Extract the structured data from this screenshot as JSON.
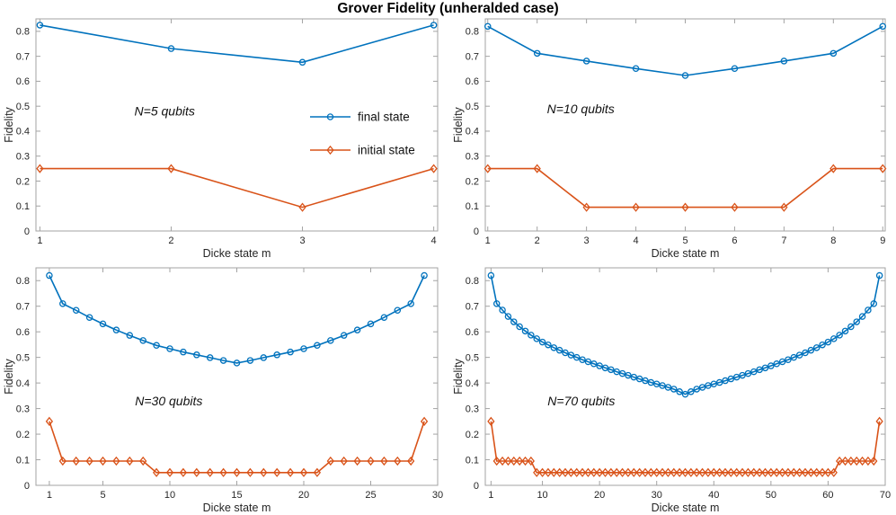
{
  "page_title": "Grover Fidelity (unheralded case)",
  "colors": {
    "final_state": "#0072BD",
    "initial_state": "#D95319",
    "spine": "#a3a3a3",
    "tick_text": "#262626",
    "background": "#ffffff"
  },
  "legend": {
    "subplot": "top-left",
    "position": "inside-middle-right",
    "items": [
      {
        "label": "final state",
        "marker": "circle",
        "color": "#0072BD"
      },
      {
        "label": "initial state",
        "marker": "diamond",
        "color": "#D95319"
      }
    ]
  },
  "chart_data": [
    {
      "type": "line",
      "subplot": "top-left",
      "annotation": {
        "text": "N=5 qubits",
        "x": 1.72,
        "y": 0.48
      },
      "xlabel": "Dicke state m",
      "ylabel": "Fidelity",
      "xlim": [
        0.97,
        4.03
      ],
      "ylim": [
        0,
        0.85
      ],
      "xticks": [
        1,
        2,
        3,
        4
      ],
      "yticks": [
        0,
        0.1,
        0.2,
        0.3,
        0.4,
        0.5,
        0.6,
        0.7,
        0.8
      ],
      "grid": false,
      "x": [
        1,
        2,
        3,
        4
      ],
      "series": [
        {
          "name": "final state",
          "color": "#0072BD",
          "marker": "circle",
          "values": [
            0.825,
            0.731,
            0.676,
            0.825
          ]
        },
        {
          "name": "initial state",
          "color": "#D95319",
          "marker": "diamond",
          "values": [
            0.25,
            0.25,
            0.095,
            0.25
          ]
        }
      ]
    },
    {
      "type": "line",
      "subplot": "top-right",
      "annotation": {
        "text": "N=10 qubits",
        "x": 2.2,
        "y": 0.49
      },
      "xlabel": "Dicke state m",
      "ylabel": "Fidelity",
      "xlim": [
        0.95,
        9.05
      ],
      "ylim": [
        0,
        0.85
      ],
      "xticks": [
        1,
        2,
        3,
        4,
        5,
        6,
        7,
        8,
        9
      ],
      "yticks": [
        0,
        0.1,
        0.2,
        0.3,
        0.4,
        0.5,
        0.6,
        0.7,
        0.8
      ],
      "grid": false,
      "x": [
        1,
        2,
        3,
        4,
        5,
        6,
        7,
        8,
        9
      ],
      "series": [
        {
          "name": "final state",
          "color": "#0072BD",
          "marker": "circle",
          "values": [
            0.82,
            0.712,
            0.681,
            0.651,
            0.623,
            0.651,
            0.681,
            0.712,
            0.82
          ]
        },
        {
          "name": "initial state",
          "color": "#D95319",
          "marker": "diamond",
          "values": [
            0.25,
            0.25,
            0.095,
            0.095,
            0.095,
            0.095,
            0.095,
            0.25,
            0.25
          ]
        }
      ]
    },
    {
      "type": "line",
      "subplot": "bottom-left",
      "annotation": {
        "text": "N=30 qubits",
        "x": 7.4,
        "y": 0.33
      },
      "xlabel": "Dicke state m",
      "ylabel": "Fidelity",
      "xlim": [
        0,
        30
      ],
      "ylim": [
        0,
        0.85
      ],
      "xticks": [
        1,
        5,
        10,
        15,
        20,
        25,
        30
      ],
      "yticks": [
        0,
        0.1,
        0.2,
        0.3,
        0.4,
        0.5,
        0.6,
        0.7,
        0.8
      ],
      "grid": false,
      "x": [
        1,
        2,
        3,
        4,
        5,
        6,
        7,
        8,
        9,
        10,
        11,
        12,
        13,
        14,
        15,
        16,
        17,
        18,
        19,
        20,
        21,
        22,
        23,
        24,
        25,
        26,
        27,
        28,
        29
      ],
      "series": [
        {
          "name": "final state",
          "color": "#0072BD",
          "marker": "circle",
          "values": [
            0.82,
            0.71,
            0.684,
            0.656,
            0.631,
            0.607,
            0.586,
            0.566,
            0.547,
            0.534,
            0.521,
            0.51,
            0.499,
            0.488,
            0.478,
            0.488,
            0.499,
            0.51,
            0.521,
            0.534,
            0.547,
            0.566,
            0.586,
            0.607,
            0.631,
            0.656,
            0.684,
            0.71,
            0.82
          ]
        },
        {
          "name": "initial state",
          "color": "#D95319",
          "marker": "diamond",
          "values": [
            0.25,
            0.095,
            0.095,
            0.095,
            0.095,
            0.095,
            0.095,
            0.095,
            0.05,
            0.05,
            0.05,
            0.05,
            0.05,
            0.05,
            0.05,
            0.05,
            0.05,
            0.05,
            0.05,
            0.05,
            0.05,
            0.095,
            0.095,
            0.095,
            0.095,
            0.095,
            0.095,
            0.095,
            0.25
          ]
        }
      ]
    },
    {
      "type": "line",
      "subplot": "bottom-right",
      "annotation": {
        "text": "N=70 qubits",
        "x": 10.9,
        "y": 0.33
      },
      "xlabel": "Dicke state m",
      "ylabel": "Fidelity",
      "xlim": [
        0,
        70
      ],
      "ylim": [
        0,
        0.85
      ],
      "xticks": [
        1,
        10,
        20,
        30,
        40,
        50,
        60,
        70
      ],
      "yticks": [
        0,
        0.1,
        0.2,
        0.3,
        0.4,
        0.5,
        0.6,
        0.7,
        0.8
      ],
      "grid": false,
      "x": [
        1,
        2,
        3,
        4,
        5,
        6,
        7,
        8,
        9,
        10,
        11,
        12,
        13,
        14,
        15,
        16,
        17,
        18,
        19,
        20,
        21,
        22,
        23,
        24,
        25,
        26,
        27,
        28,
        29,
        30,
        31,
        32,
        33,
        34,
        35,
        36,
        37,
        38,
        39,
        40,
        41,
        42,
        43,
        44,
        45,
        46,
        47,
        48,
        49,
        50,
        51,
        52,
        53,
        54,
        55,
        56,
        57,
        58,
        59,
        60,
        61,
        62,
        63,
        64,
        65,
        66,
        67,
        68,
        69
      ],
      "series": [
        {
          "name": "final state",
          "color": "#0072BD",
          "marker": "circle",
          "values": [
            0.82,
            0.71,
            0.685,
            0.66,
            0.639,
            0.62,
            0.603,
            0.587,
            0.573,
            0.56,
            0.549,
            0.538,
            0.528,
            0.518,
            0.509,
            0.5,
            0.491,
            0.483,
            0.475,
            0.467,
            0.459,
            0.452,
            0.444,
            0.437,
            0.43,
            0.423,
            0.416,
            0.409,
            0.402,
            0.396,
            0.39,
            0.383,
            0.376,
            0.366,
            0.356,
            0.366,
            0.376,
            0.383,
            0.39,
            0.396,
            0.402,
            0.409,
            0.416,
            0.423,
            0.43,
            0.437,
            0.444,
            0.452,
            0.459,
            0.467,
            0.475,
            0.483,
            0.491,
            0.5,
            0.509,
            0.518,
            0.528,
            0.538,
            0.549,
            0.56,
            0.573,
            0.587,
            0.603,
            0.62,
            0.639,
            0.66,
            0.685,
            0.71,
            0.82
          ]
        },
        {
          "name": "initial state",
          "color": "#D95319",
          "marker": "diamond",
          "values": [
            0.25,
            0.095,
            0.095,
            0.095,
            0.095,
            0.095,
            0.095,
            0.095,
            0.05,
            0.05,
            0.05,
            0.05,
            0.05,
            0.05,
            0.05,
            0.05,
            0.05,
            0.05,
            0.05,
            0.05,
            0.05,
            0.05,
            0.05,
            0.05,
            0.05,
            0.05,
            0.05,
            0.05,
            0.05,
            0.05,
            0.05,
            0.05,
            0.05,
            0.05,
            0.05,
            0.05,
            0.05,
            0.05,
            0.05,
            0.05,
            0.05,
            0.05,
            0.05,
            0.05,
            0.05,
            0.05,
            0.05,
            0.05,
            0.05,
            0.05,
            0.05,
            0.05,
            0.05,
            0.05,
            0.05,
            0.05,
            0.05,
            0.05,
            0.05,
            0.05,
            0.05,
            0.095,
            0.095,
            0.095,
            0.095,
            0.095,
            0.095,
            0.095,
            0.25
          ]
        }
      ]
    }
  ]
}
